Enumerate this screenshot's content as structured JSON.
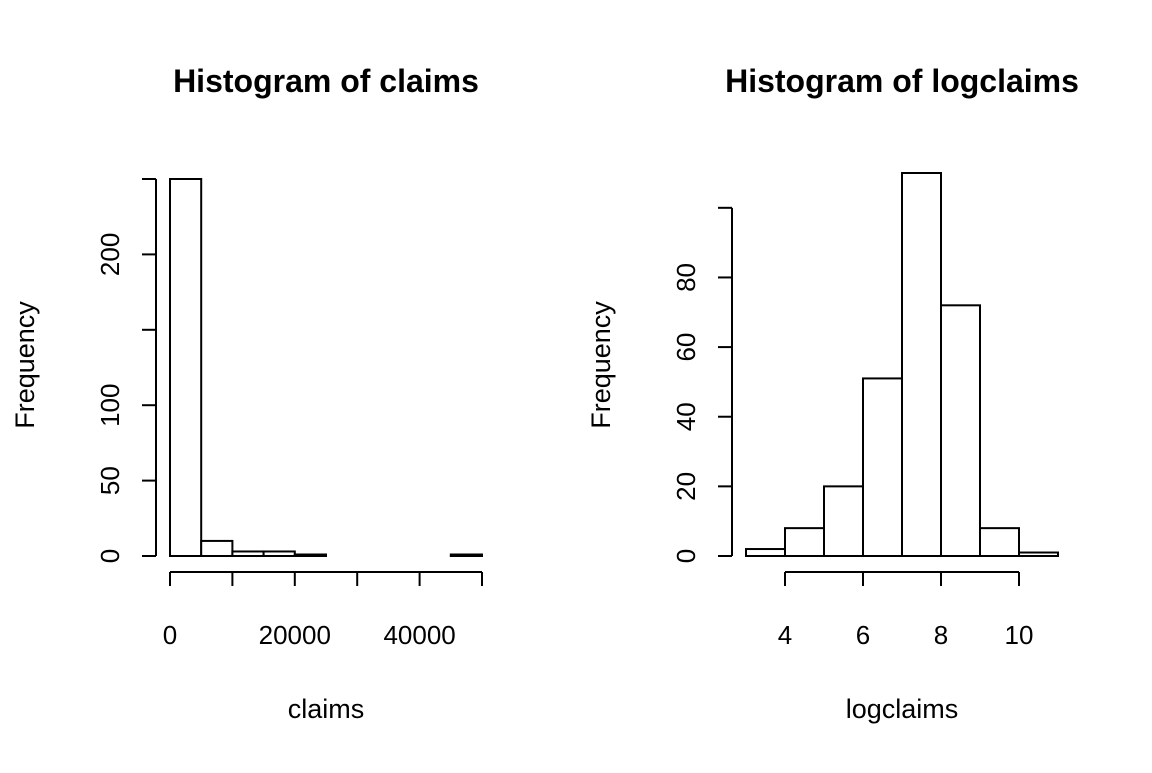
{
  "chart_data": [
    {
      "type": "bar",
      "title": "Histogram of claims",
      "xlabel": "claims",
      "ylabel": "Frequency",
      "bin_edges": [
        0,
        5000,
        10000,
        15000,
        20000,
        25000,
        30000,
        35000,
        40000,
        45000,
        50000
      ],
      "values": [
        250,
        10,
        3,
        3,
        1,
        0,
        0,
        0,
        0,
        1
      ],
      "xlim": [
        0,
        50000
      ],
      "ylim": [
        0,
        250
      ],
      "x_ticks": [
        0,
        10000,
        20000,
        30000,
        40000,
        50000
      ],
      "x_tick_labels": [
        "0",
        "",
        "20000",
        "",
        "40000",
        ""
      ],
      "y_ticks": [
        0,
        50,
        100,
        150,
        200,
        250
      ],
      "y_tick_labels": [
        "0",
        "50",
        "100",
        "",
        "200",
        ""
      ],
      "grid": false,
      "legend": "none"
    },
    {
      "type": "bar",
      "title": "Histogram of logclaims",
      "xlabel": "logclaims",
      "ylabel": "Frequency",
      "bin_edges": [
        3,
        4,
        5,
        6,
        7,
        8,
        9,
        10,
        11
      ],
      "values": [
        2,
        8,
        20,
        51,
        110,
        72,
        8,
        1
      ],
      "xlim": [
        3,
        11
      ],
      "ylim": [
        0,
        110
      ],
      "x_ticks": [
        4,
        6,
        8,
        10
      ],
      "x_tick_labels": [
        "4",
        "6",
        "8",
        "10"
      ],
      "y_ticks": [
        0,
        20,
        40,
        60,
        80,
        100
      ],
      "y_tick_labels": [
        "0",
        "20",
        "40",
        "60",
        "80",
        ""
      ],
      "grid": false,
      "legend": "none"
    }
  ]
}
